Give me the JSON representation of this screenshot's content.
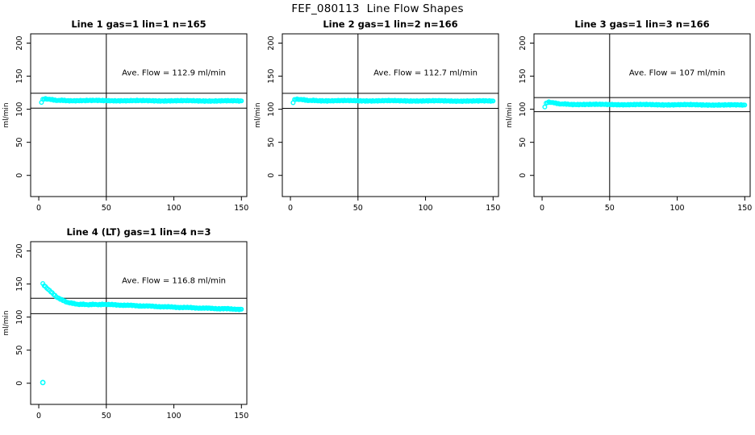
{
  "page": {
    "title": "FEF_080113  Line Flow Shapes",
    "background": "#FFFFFF"
  },
  "style": {
    "point_color": "#00FFFF",
    "axis_color": "#000000",
    "text_color": "#000000"
  },
  "chart_data": [
    {
      "type": "scatter",
      "title": "Line 1 gas=1 lin=1 n=165",
      "annotation": "Ave. Flow =  112.9  ml/min",
      "ave_flow_ml_min": 112.9,
      "n": 165,
      "xlabel": "",
      "ylabel": "ml/min",
      "xlim": [
        0,
        150
      ],
      "ylim": [
        0,
        200
      ],
      "xticks": [
        0,
        50,
        100,
        150
      ],
      "yticks": [
        0,
        50,
        100,
        150,
        200
      ],
      "vline_x": 50,
      "hlines": [
        124.2,
        101.6
      ],
      "annotation_xy": [
        100,
        151
      ],
      "points": [
        [
          2,
          110.5
        ],
        [
          3,
          114.5
        ],
        [
          4,
          115.8
        ],
        [
          5,
          116.0
        ],
        [
          6,
          115.7
        ],
        [
          8,
          115.0
        ],
        [
          10,
          114.2
        ],
        [
          13,
          113.6
        ],
        [
          16,
          113.3
        ],
        [
          20,
          113.2
        ],
        [
          30,
          113.1
        ],
        [
          40,
          113.1
        ],
        [
          50,
          113.0
        ],
        [
          60,
          113.0
        ],
        [
          70,
          112.9
        ],
        [
          80,
          112.9
        ],
        [
          90,
          112.8
        ],
        [
          100,
          112.8
        ],
        [
          110,
          112.7
        ],
        [
          120,
          112.7
        ],
        [
          130,
          112.6
        ],
        [
          140,
          112.6
        ],
        [
          150,
          112.5
        ]
      ],
      "extra_points": []
    },
    {
      "type": "scatter",
      "title": "Line 2 gas=1 lin=2 n=166",
      "annotation": "Ave. Flow =  112.7  ml/min",
      "ave_flow_ml_min": 112.7,
      "n": 166,
      "xlabel": "",
      "ylabel": "ml/min",
      "xlim": [
        0,
        150
      ],
      "ylim": [
        0,
        200
      ],
      "xticks": [
        0,
        50,
        100,
        150
      ],
      "yticks": [
        0,
        50,
        100,
        150,
        200
      ],
      "vline_x": 50,
      "hlines": [
        124.0,
        101.4
      ],
      "annotation_xy": [
        100,
        151
      ],
      "points": [
        [
          2,
          110.0
        ],
        [
          3,
          114.0
        ],
        [
          4,
          115.3
        ],
        [
          5,
          115.5
        ],
        [
          6,
          115.2
        ],
        [
          8,
          114.6
        ],
        [
          10,
          114.0
        ],
        [
          13,
          113.5
        ],
        [
          16,
          113.2
        ],
        [
          20,
          113.0
        ],
        [
          30,
          112.9
        ],
        [
          40,
          112.9
        ],
        [
          50,
          112.8
        ],
        [
          60,
          112.8
        ],
        [
          70,
          112.8
        ],
        [
          80,
          112.7
        ],
        [
          90,
          112.7
        ],
        [
          100,
          112.6
        ],
        [
          110,
          112.6
        ],
        [
          120,
          112.5
        ],
        [
          130,
          112.5
        ],
        [
          140,
          112.4
        ],
        [
          150,
          112.4
        ]
      ],
      "extra_points": []
    },
    {
      "type": "scatter",
      "title": "Line 3 gas=1 lin=3 n=166",
      "annotation": "Ave. Flow =  107  ml/min",
      "ave_flow_ml_min": 107,
      "n": 166,
      "xlabel": "",
      "ylabel": "ml/min",
      "xlim": [
        0,
        150
      ],
      "ylim": [
        0,
        200
      ],
      "xticks": [
        0,
        50,
        100,
        150
      ],
      "yticks": [
        0,
        50,
        100,
        150,
        200
      ],
      "vline_x": 50,
      "hlines": [
        117.7,
        96.3
      ],
      "annotation_xy": [
        100,
        151
      ],
      "points": [
        [
          2,
          103.5
        ],
        [
          3,
          108.5
        ],
        [
          4,
          110.5
        ],
        [
          5,
          111.0
        ],
        [
          6,
          110.8
        ],
        [
          8,
          110.0
        ],
        [
          10,
          109.0
        ],
        [
          13,
          108.2
        ],
        [
          16,
          107.8
        ],
        [
          20,
          107.5
        ],
        [
          30,
          107.3
        ],
        [
          40,
          107.2
        ],
        [
          50,
          107.1
        ],
        [
          60,
          107.0
        ],
        [
          70,
          107.0
        ],
        [
          80,
          106.9
        ],
        [
          90,
          106.8
        ],
        [
          100,
          106.8
        ],
        [
          110,
          106.7
        ],
        [
          120,
          106.6
        ],
        [
          130,
          106.5
        ],
        [
          140,
          106.4
        ],
        [
          150,
          106.3
        ]
      ],
      "extra_points": []
    },
    {
      "type": "scatter",
      "title": "Line 4 (LT) gas=1 lin=4 n=3",
      "annotation": "Ave. Flow =  116.8  ml/min",
      "ave_flow_ml_min": 116.8,
      "n": 3,
      "xlabel": "",
      "ylabel": "ml/min",
      "xlim": [
        0,
        150
      ],
      "ylim": [
        0,
        200
      ],
      "xticks": [
        0,
        50,
        100,
        150
      ],
      "yticks": [
        0,
        50,
        100,
        150,
        200
      ],
      "vline_x": 50,
      "hlines": [
        128.5,
        105.1
      ],
      "annotation_xy": [
        100,
        151
      ],
      "points": [
        [
          3,
          150.0
        ],
        [
          4,
          148.0
        ],
        [
          5,
          146.0
        ],
        [
          6,
          144.0
        ],
        [
          7,
          142.0
        ],
        [
          8,
          140.0
        ],
        [
          9,
          138.0
        ],
        [
          10,
          136.0
        ],
        [
          12,
          132.5
        ],
        [
          14,
          129.5
        ],
        [
          16,
          127.0
        ],
        [
          18,
          125.0
        ],
        [
          20,
          123.3
        ],
        [
          22,
          122.0
        ],
        [
          24,
          121.0
        ],
        [
          26,
          120.3
        ],
        [
          28,
          119.7
        ],
        [
          30,
          119.3
        ],
        [
          34,
          119.0
        ],
        [
          38,
          118.9
        ],
        [
          42,
          119.0
        ],
        [
          46,
          119.0
        ],
        [
          50,
          118.9
        ],
        [
          55,
          118.6
        ],
        [
          60,
          118.2
        ],
        [
          65,
          117.8
        ],
        [
          70,
          117.4
        ],
        [
          75,
          117.0
        ],
        [
          80,
          116.6
        ],
        [
          85,
          116.2
        ],
        [
          90,
          115.8
        ],
        [
          95,
          115.4
        ],
        [
          100,
          115.0
        ],
        [
          105,
          114.6
        ],
        [
          110,
          114.3
        ],
        [
          115,
          114.0
        ],
        [
          120,
          113.6
        ],
        [
          125,
          113.3
        ],
        [
          130,
          113.0
        ],
        [
          135,
          112.7
        ],
        [
          140,
          112.4
        ],
        [
          145,
          112.1
        ],
        [
          150,
          111.8
        ]
      ],
      "extra_points": [
        [
          3,
          1
        ]
      ]
    }
  ]
}
